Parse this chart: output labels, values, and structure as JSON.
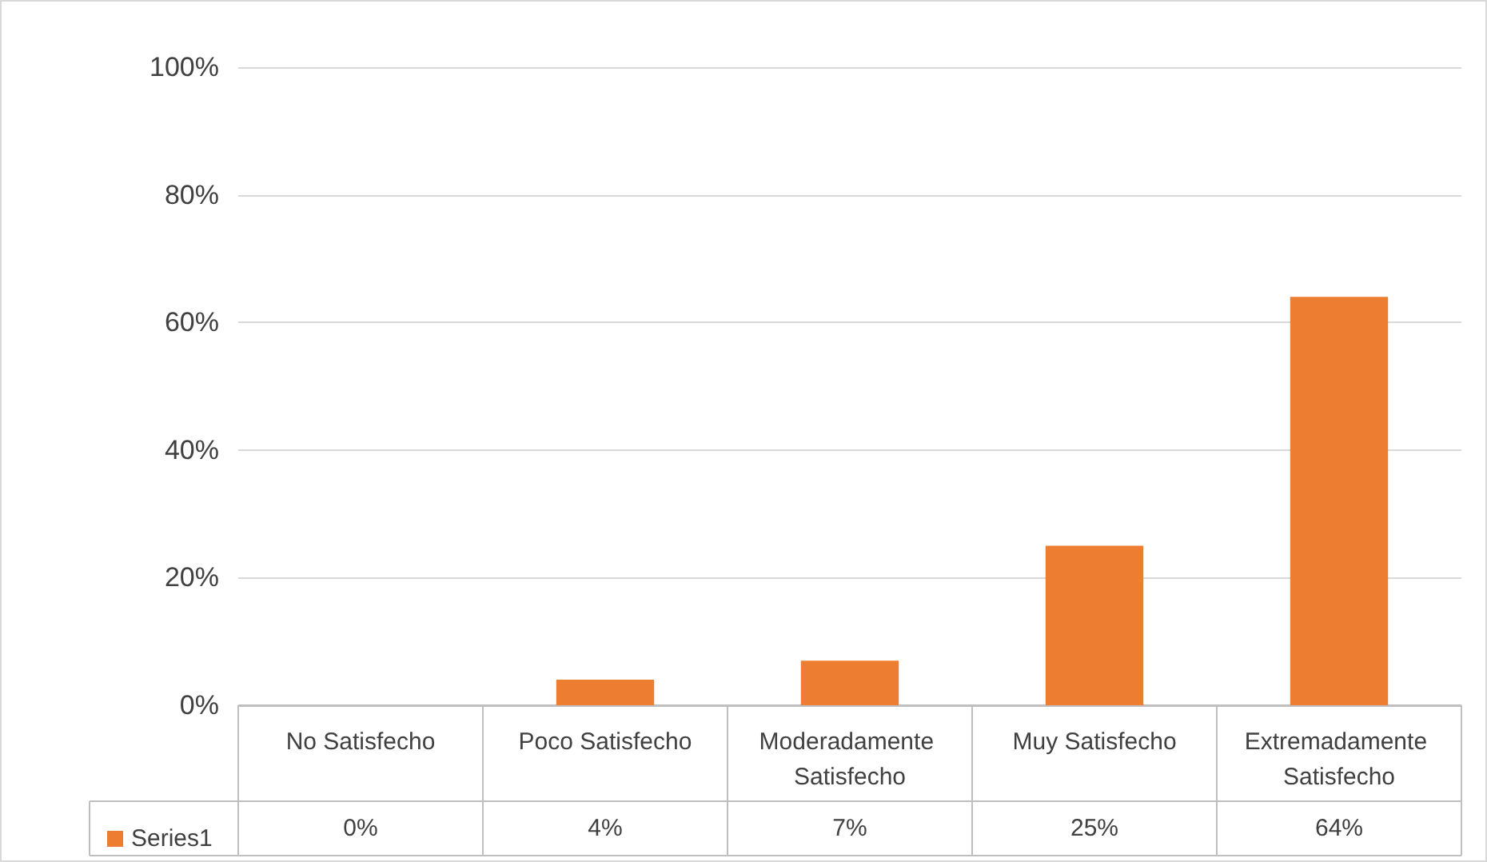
{
  "chart_data": {
    "type": "bar",
    "categories": [
      "No Satisfecho",
      "Poco Satisfecho",
      "Moderadamente Satisfecho",
      "Muy Satisfecho",
      "Extremadamente Satisfecho"
    ],
    "series": [
      {
        "name": "Series1",
        "color": "#ed7d31",
        "values": [
          0,
          4,
          7,
          25,
          64
        ],
        "value_labels": [
          "0%",
          "4%",
          "7%",
          "25%",
          "64%"
        ]
      }
    ],
    "ylim": [
      0,
      100
    ],
    "yticks": [
      {
        "value": 0,
        "label": "0%"
      },
      {
        "value": 20,
        "label": "20%"
      },
      {
        "value": 40,
        "label": "40%"
      },
      {
        "value": 60,
        "label": "60%"
      },
      {
        "value": 80,
        "label": "80%"
      },
      {
        "value": 100,
        "label": "100%"
      }
    ],
    "grid": "y",
    "legend": "bottom left"
  }
}
